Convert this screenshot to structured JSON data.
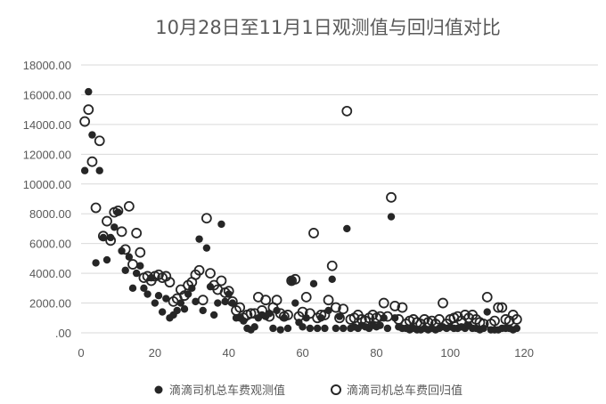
{
  "chart_data": {
    "type": "scatter",
    "title": "10月28日至11月1日观测值与回归值对比",
    "xlabel": "",
    "ylabel": "",
    "xlim": [
      0,
      140
    ],
    "ylim": [
      0,
      18000
    ],
    "x_ticks": [
      0,
      20,
      40,
      60,
      80,
      100,
      120
    ],
    "y_ticks": [
      0,
      2000,
      4000,
      6000,
      8000,
      10000,
      12000,
      14000,
      16000,
      18000
    ],
    "x_tick_labels": [
      "0",
      "20",
      "40",
      "60",
      "80",
      "100",
      "120"
    ],
    "y_tick_labels": [
      ".00",
      "2000.00",
      "4000.00",
      "6000.00",
      "8000.00",
      "10000.00",
      "12000.00",
      "14000.00",
      "16000.00",
      "18000.00"
    ],
    "grid": "horizontal",
    "legend_position": "bottom",
    "series": [
      {
        "name": "滴滴司机总车费观测值",
        "marker": "filled-circle",
        "color": "#262626",
        "points": [
          [
            1,
            10900
          ],
          [
            2,
            16200
          ],
          [
            3,
            13300
          ],
          [
            4,
            4700
          ],
          [
            5,
            10900
          ],
          [
            6,
            6400
          ],
          [
            7,
            4900
          ],
          [
            8,
            6400
          ],
          [
            9,
            7100
          ],
          [
            10,
            8100
          ],
          [
            11,
            5500
          ],
          [
            12,
            4200
          ],
          [
            13,
            5100
          ],
          [
            14,
            3000
          ],
          [
            15,
            4000
          ],
          [
            16,
            4500
          ],
          [
            17,
            3000
          ],
          [
            18,
            2600
          ],
          [
            19,
            3700
          ],
          [
            20,
            2000
          ],
          [
            21,
            2500
          ],
          [
            22,
            1400
          ],
          [
            23,
            2300
          ],
          [
            24,
            1000
          ],
          [
            25,
            1200
          ],
          [
            26,
            1500
          ],
          [
            27,
            2000
          ],
          [
            28,
            1600
          ],
          [
            29,
            2600
          ],
          [
            30,
            3000
          ],
          [
            31,
            2100
          ],
          [
            32,
            6300
          ],
          [
            33,
            1500
          ],
          [
            34,
            5700
          ],
          [
            35,
            3100
          ],
          [
            36,
            1200
          ],
          [
            37,
            2000
          ],
          [
            38,
            7300
          ],
          [
            39,
            2100
          ],
          [
            40,
            2600
          ],
          [
            41,
            2000
          ],
          [
            42,
            1000
          ],
          [
            43,
            1000
          ],
          [
            44,
            800
          ],
          [
            45,
            300
          ],
          [
            46,
            200
          ],
          [
            47,
            400
          ],
          [
            48,
            1000
          ],
          [
            49,
            1200
          ],
          [
            50,
            1100
          ],
          [
            51,
            1300
          ],
          [
            52,
            300
          ],
          [
            53,
            1500
          ],
          [
            54,
            200
          ],
          [
            55,
            1000
          ],
          [
            56,
            300
          ],
          [
            57,
            3500
          ],
          [
            58,
            2000
          ],
          [
            59,
            700
          ],
          [
            60,
            400
          ],
          [
            61,
            1000
          ],
          [
            62,
            300
          ],
          [
            63,
            3300
          ],
          [
            64,
            300
          ],
          [
            65,
            1000
          ],
          [
            66,
            300
          ],
          [
            67,
            1500
          ],
          [
            68,
            3600
          ],
          [
            69,
            300
          ],
          [
            70,
            1100
          ],
          [
            71,
            300
          ],
          [
            72,
            7000
          ],
          [
            73,
            300
          ],
          [
            74,
            400
          ],
          [
            75,
            300
          ],
          [
            76,
            500
          ],
          [
            77,
            400
          ],
          [
            78,
            300
          ],
          [
            79,
            500
          ],
          [
            80,
            400
          ],
          [
            81,
            500
          ],
          [
            82,
            1000
          ],
          [
            83,
            300
          ],
          [
            84,
            7800
          ],
          [
            85,
            1000
          ],
          [
            86,
            400
          ],
          [
            87,
            300
          ],
          [
            88,
            300
          ],
          [
            89,
            200
          ],
          [
            90,
            300
          ],
          [
            91,
            200
          ],
          [
            92,
            200
          ],
          [
            93,
            300
          ],
          [
            94,
            200
          ],
          [
            95,
            300
          ],
          [
            96,
            200
          ],
          [
            97,
            300
          ],
          [
            98,
            400
          ],
          [
            99,
            300
          ],
          [
            100,
            400
          ],
          [
            101,
            300
          ],
          [
            102,
            300
          ],
          [
            103,
            400
          ],
          [
            104,
            300
          ],
          [
            105,
            500
          ],
          [
            106,
            300
          ],
          [
            107,
            300
          ],
          [
            108,
            200
          ],
          [
            109,
            300
          ],
          [
            110,
            1400
          ],
          [
            111,
            200
          ],
          [
            112,
            200
          ],
          [
            113,
            200
          ],
          [
            114,
            300
          ],
          [
            115,
            300
          ],
          [
            116,
            300
          ],
          [
            117,
            200
          ],
          [
            118,
            300
          ]
        ]
      },
      {
        "name": "滴滴司机总车费回归值",
        "marker": "hollow-circle",
        "color": "#262626",
        "points": [
          [
            1,
            14200
          ],
          [
            2,
            15000
          ],
          [
            3,
            11500
          ],
          [
            4,
            8400
          ],
          [
            5,
            12900
          ],
          [
            6,
            6500
          ],
          [
            7,
            7500
          ],
          [
            8,
            6200
          ],
          [
            9,
            8100
          ],
          [
            10,
            8200
          ],
          [
            11,
            6800
          ],
          [
            12,
            5600
          ],
          [
            13,
            8500
          ],
          [
            14,
            4600
          ],
          [
            15,
            6700
          ],
          [
            16,
            5400
          ],
          [
            17,
            3700
          ],
          [
            18,
            3800
          ],
          [
            19,
            3500
          ],
          [
            20,
            3800
          ],
          [
            21,
            3900
          ],
          [
            22,
            3700
          ],
          [
            23,
            3800
          ],
          [
            24,
            3400
          ],
          [
            25,
            2100
          ],
          [
            26,
            2300
          ],
          [
            27,
            2900
          ],
          [
            28,
            2500
          ],
          [
            29,
            3200
          ],
          [
            30,
            3400
          ],
          [
            31,
            3900
          ],
          [
            32,
            4200
          ],
          [
            33,
            2200
          ],
          [
            34,
            7700
          ],
          [
            35,
            4000
          ],
          [
            36,
            3200
          ],
          [
            37,
            2900
          ],
          [
            38,
            3500
          ],
          [
            39,
            2700
          ],
          [
            40,
            2800
          ],
          [
            41,
            2100
          ],
          [
            42,
            1500
          ],
          [
            43,
            1700
          ],
          [
            44,
            1000
          ],
          [
            45,
            1200
          ],
          [
            46,
            1300
          ],
          [
            47,
            1300
          ],
          [
            48,
            2400
          ],
          [
            49,
            1500
          ],
          [
            50,
            2200
          ],
          [
            51,
            1100
          ],
          [
            52,
            1700
          ],
          [
            53,
            2200
          ],
          [
            54,
            1300
          ],
          [
            55,
            1100
          ],
          [
            56,
            1200
          ],
          [
            57,
            3500
          ],
          [
            58,
            3600
          ],
          [
            59,
            1100
          ],
          [
            60,
            1400
          ],
          [
            61,
            2400
          ],
          [
            62,
            1300
          ],
          [
            63,
            6700
          ],
          [
            64,
            1000
          ],
          [
            65,
            1200
          ],
          [
            66,
            1200
          ],
          [
            67,
            2200
          ],
          [
            68,
            4500
          ],
          [
            69,
            1700
          ],
          [
            70,
            1000
          ],
          [
            71,
            1600
          ],
          [
            72,
            14900
          ],
          [
            73,
            900
          ],
          [
            74,
            1000
          ],
          [
            75,
            1200
          ],
          [
            76,
            900
          ],
          [
            77,
            800
          ],
          [
            78,
            1000
          ],
          [
            79,
            1200
          ],
          [
            80,
            1000
          ],
          [
            81,
            1100
          ],
          [
            82,
            2000
          ],
          [
            83,
            1100
          ],
          [
            84,
            9100
          ],
          [
            85,
            1800
          ],
          [
            86,
            900
          ],
          [
            87,
            1700
          ],
          [
            88,
            600
          ],
          [
            89,
            800
          ],
          [
            90,
            900
          ],
          [
            91,
            700
          ],
          [
            92,
            600
          ],
          [
            93,
            900
          ],
          [
            94,
            700
          ],
          [
            95,
            800
          ],
          [
            96,
            600
          ],
          [
            97,
            900
          ],
          [
            98,
            2000
          ],
          [
            99,
            600
          ],
          [
            100,
            900
          ],
          [
            101,
            1000
          ],
          [
            102,
            1100
          ],
          [
            103,
            800
          ],
          [
            104,
            1200
          ],
          [
            105,
            1000
          ],
          [
            106,
            1200
          ],
          [
            107,
            900
          ],
          [
            108,
            700
          ],
          [
            109,
            600
          ],
          [
            110,
            2400
          ],
          [
            111,
            600
          ],
          [
            112,
            800
          ],
          [
            113,
            1700
          ],
          [
            114,
            1700
          ],
          [
            115,
            900
          ],
          [
            116,
            800
          ],
          [
            117,
            1200
          ],
          [
            118,
            900
          ]
        ]
      }
    ]
  }
}
